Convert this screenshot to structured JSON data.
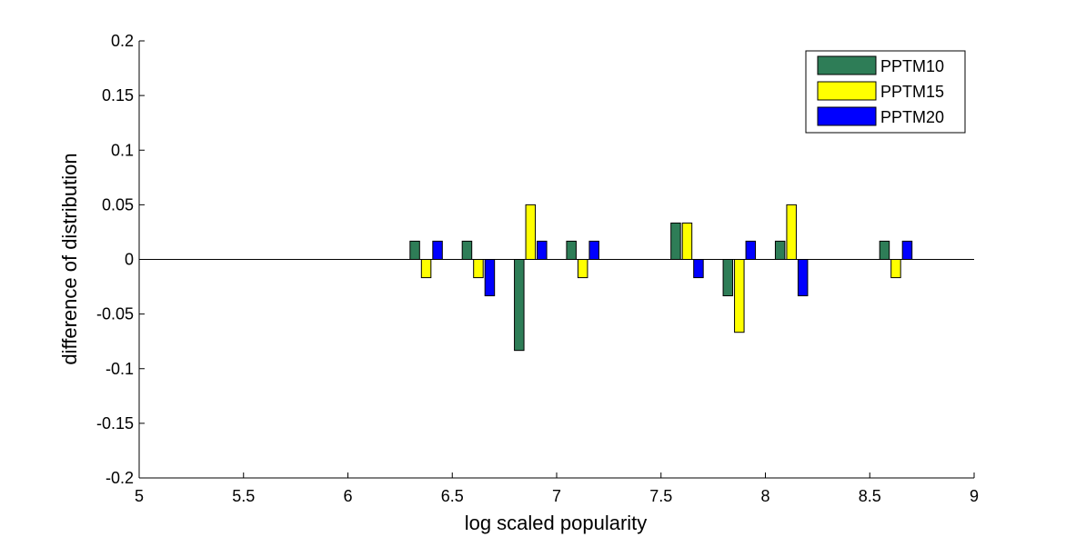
{
  "chart_data": {
    "type": "bar",
    "title": "",
    "xlabel": "log scaled popularity",
    "ylabel": "difference of distribution",
    "xlim": [
      5,
      9
    ],
    "ylim": [
      -0.2,
      0.2
    ],
    "xticks": [
      5,
      5.5,
      6,
      6.5,
      7,
      7.5,
      8,
      8.5,
      9
    ],
    "xtick_labels": [
      "5",
      "5.5",
      "6",
      "6.5",
      "7",
      "7.5",
      "8",
      "8.5",
      "9"
    ],
    "yticks": [
      -0.2,
      -0.15,
      -0.1,
      -0.05,
      0,
      0.05,
      0.1,
      0.15,
      0.2
    ],
    "ytick_labels": [
      "-0.2",
      "-0.15",
      "-0.1",
      "-0.05",
      "0",
      "0.05",
      "0.1",
      "0.15",
      "0.2"
    ],
    "grid": false,
    "legend_position": "top-right",
    "bar_group_centers": [
      6.375,
      6.625,
      6.875,
      7.125,
      7.625,
      7.875,
      8.125,
      8.625
    ],
    "series": [
      {
        "name": "PPTM10",
        "color": "#2e7d57",
        "values": [
          0.0167,
          0.0167,
          -0.0833,
          0.0167,
          0.0333,
          -0.0333,
          0.0167,
          0.0167
        ]
      },
      {
        "name": "PPTM15",
        "color": "#ffff00",
        "values": [
          -0.0167,
          -0.0167,
          0.05,
          -0.0167,
          0.0333,
          -0.0667,
          0.05,
          -0.0167
        ]
      },
      {
        "name": "PPTM20",
        "color": "#0000ff",
        "values": [
          0.0167,
          -0.0333,
          0.0167,
          0.0167,
          -0.0167,
          0.0167,
          -0.0333,
          0.0167
        ]
      }
    ]
  }
}
